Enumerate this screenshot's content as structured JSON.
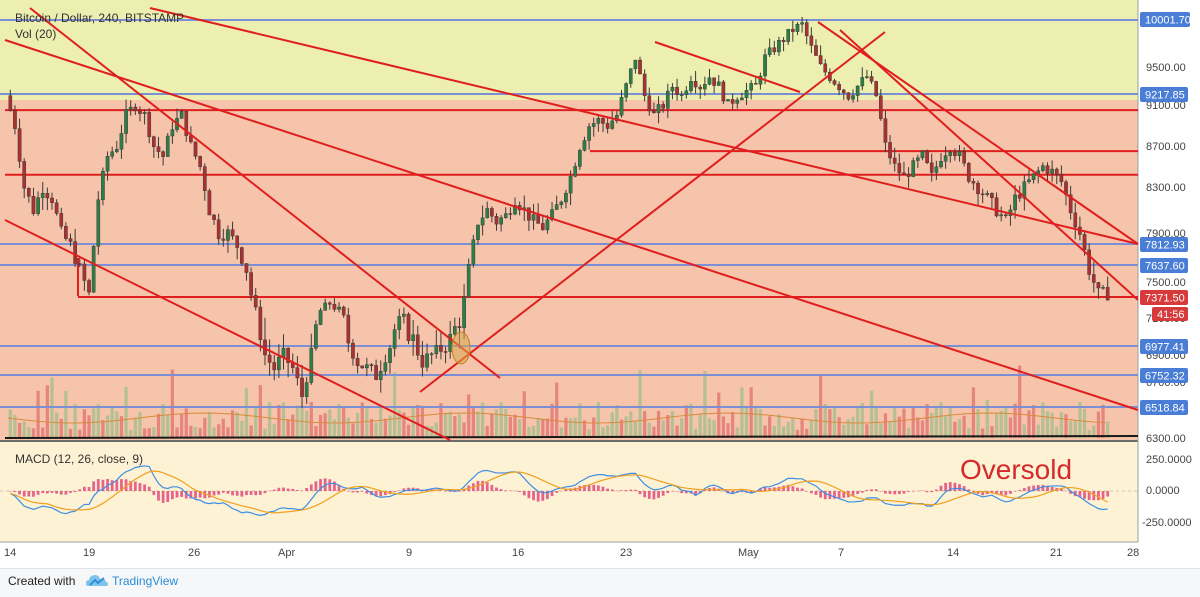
{
  "header": {
    "symbol": "Bitcoin / Dollar, 240, BITSTAMP",
    "volume_label": "Vol (20)",
    "macd_label": "MACD (12, 26, close, 9)",
    "annotation": "Oversold"
  },
  "footer": {
    "created_with": "Created with",
    "brand": "TradingView"
  },
  "colors": {
    "top_zone": "#ecefb0",
    "mid_zone": "#f5c4aa",
    "macd_zone": "#fdf2d3",
    "trend_line": "#e01e1e",
    "level_line": "#7b8fd4",
    "up_candle": "#2f7d46",
    "down_candle": "#a83232",
    "macd_line": "#3c8fe6",
    "signal_line": "#f0a020",
    "histogram": "#e0407a",
    "price_tag": "#4a7ed6",
    "current_tag": "#d63a3a"
  },
  "chart_data": {
    "type": "candlestick",
    "x_tick_labels": [
      "14",
      "19",
      "26",
      "Apr",
      "9",
      "16",
      "23",
      "May",
      "7",
      "14",
      "21",
      "28"
    ],
    "price_axis_labels": [
      "9500.00",
      "9100.00",
      "8700.00",
      "8300.00",
      "7900.00",
      "7500.00",
      "7100.00",
      "6900.00",
      "6700.00",
      "6300.00"
    ],
    "price_tags": [
      "10001.70",
      "9217.85",
      "7812.93",
      "7637.60",
      "6977.41",
      "6752.32",
      "6518.84"
    ],
    "current_price": "7371.50",
    "countdown": "41:56",
    "macd_axis_labels": [
      "250.0000",
      "0.0000",
      "-250.0000"
    ],
    "price_range": [
      6300,
      10100
    ],
    "horizontal_levels": [
      10001.7,
      9217.85,
      7812.93,
      7637.6,
      6977.41,
      6752.32,
      6518.84
    ],
    "resistance_levels": [
      9050,
      8650,
      8420,
      7380
    ],
    "price_path": [
      [
        0,
        9200
      ],
      [
        2,
        8900
      ],
      [
        4,
        8300
      ],
      [
        6,
        8100
      ],
      [
        8,
        8300
      ],
      [
        10,
        8200
      ],
      [
        12,
        7900
      ],
      [
        14,
        7800
      ],
      [
        16,
        7600
      ],
      [
        18,
        7400
      ],
      [
        20,
        8200
      ],
      [
        22,
        8600
      ],
      [
        24,
        8700
      ],
      [
        26,
        9000
      ],
      [
        28,
        9100
      ],
      [
        30,
        9000
      ],
      [
        32,
        8700
      ],
      [
        34,
        8600
      ],
      [
        36,
        8900
      ],
      [
        38,
        9000
      ],
      [
        40,
        8700
      ],
      [
        42,
        8500
      ],
      [
        44,
        8100
      ],
      [
        46,
        7900
      ],
      [
        48,
        7900
      ],
      [
        50,
        7800
      ],
      [
        52,
        7600
      ],
      [
        54,
        7200
      ],
      [
        56,
        6900
      ],
      [
        58,
        6800
      ],
      [
        60,
        6900
      ],
      [
        62,
        6800
      ],
      [
        64,
        6600
      ],
      [
        66,
        6900
      ],
      [
        68,
        7200
      ],
      [
        70,
        7300
      ],
      [
        72,
        7200
      ],
      [
        74,
        7000
      ],
      [
        76,
        6850
      ],
      [
        78,
        6800
      ],
      [
        80,
        6750
      ],
      [
        82,
        6900
      ],
      [
        84,
        7050
      ],
      [
        86,
        7100
      ],
      [
        88,
        7000
      ],
      [
        90,
        6850
      ],
      [
        92,
        6900
      ],
      [
        94,
        6950
      ],
      [
        96,
        7000
      ],
      [
        98,
        7100
      ],
      [
        100,
        7600
      ],
      [
        102,
        8000
      ],
      [
        104,
        8100
      ],
      [
        106,
        8000
      ],
      [
        108,
        8050
      ],
      [
        110,
        8200
      ],
      [
        112,
        8100
      ],
      [
        114,
        8000
      ],
      [
        116,
        7950
      ],
      [
        118,
        8050
      ],
      [
        120,
        8200
      ],
      [
        122,
        8400
      ],
      [
        124,
        8700
      ],
      [
        126,
        8900
      ],
      [
        128,
        8950
      ],
      [
        130,
        8900
      ],
      [
        132,
        9000
      ],
      [
        134,
        9300
      ],
      [
        136,
        9600
      ],
      [
        138,
        9200
      ],
      [
        140,
        9000
      ],
      [
        142,
        9100
      ],
      [
        144,
        9300
      ],
      [
        146,
        9200
      ],
      [
        148,
        9400
      ],
      [
        150,
        9300
      ],
      [
        152,
        9400
      ],
      [
        154,
        9300
      ],
      [
        156,
        9100
      ],
      [
        158,
        9200
      ],
      [
        160,
        9250
      ],
      [
        162,
        9300
      ],
      [
        164,
        9600
      ],
      [
        166,
        9700
      ],
      [
        168,
        9800
      ],
      [
        170,
        9900
      ],
      [
        172,
        9950
      ],
      [
        174,
        9700
      ],
      [
        176,
        9500
      ],
      [
        178,
        9400
      ],
      [
        180,
        9300
      ],
      [
        182,
        9200
      ],
      [
        184,
        9300
      ],
      [
        186,
        9400
      ],
      [
        188,
        9200
      ],
      [
        190,
        8700
      ],
      [
        192,
        8500
      ],
      [
        194,
        8400
      ],
      [
        196,
        8500
      ],
      [
        198,
        8600
      ],
      [
        200,
        8400
      ],
      [
        202,
        8600
      ],
      [
        204,
        8700
      ],
      [
        206,
        8600
      ],
      [
        208,
        8400
      ],
      [
        210,
        8300
      ],
      [
        212,
        8200
      ],
      [
        214,
        8100
      ],
      [
        216,
        8000
      ],
      [
        218,
        8200
      ],
      [
        220,
        8300
      ],
      [
        222,
        8400
      ],
      [
        224,
        8500
      ],
      [
        226,
        8450
      ],
      [
        228,
        8350
      ],
      [
        230,
        8100
      ],
      [
        232,
        7900
      ],
      [
        234,
        7600
      ],
      [
        236,
        7400
      ]
    ]
  }
}
